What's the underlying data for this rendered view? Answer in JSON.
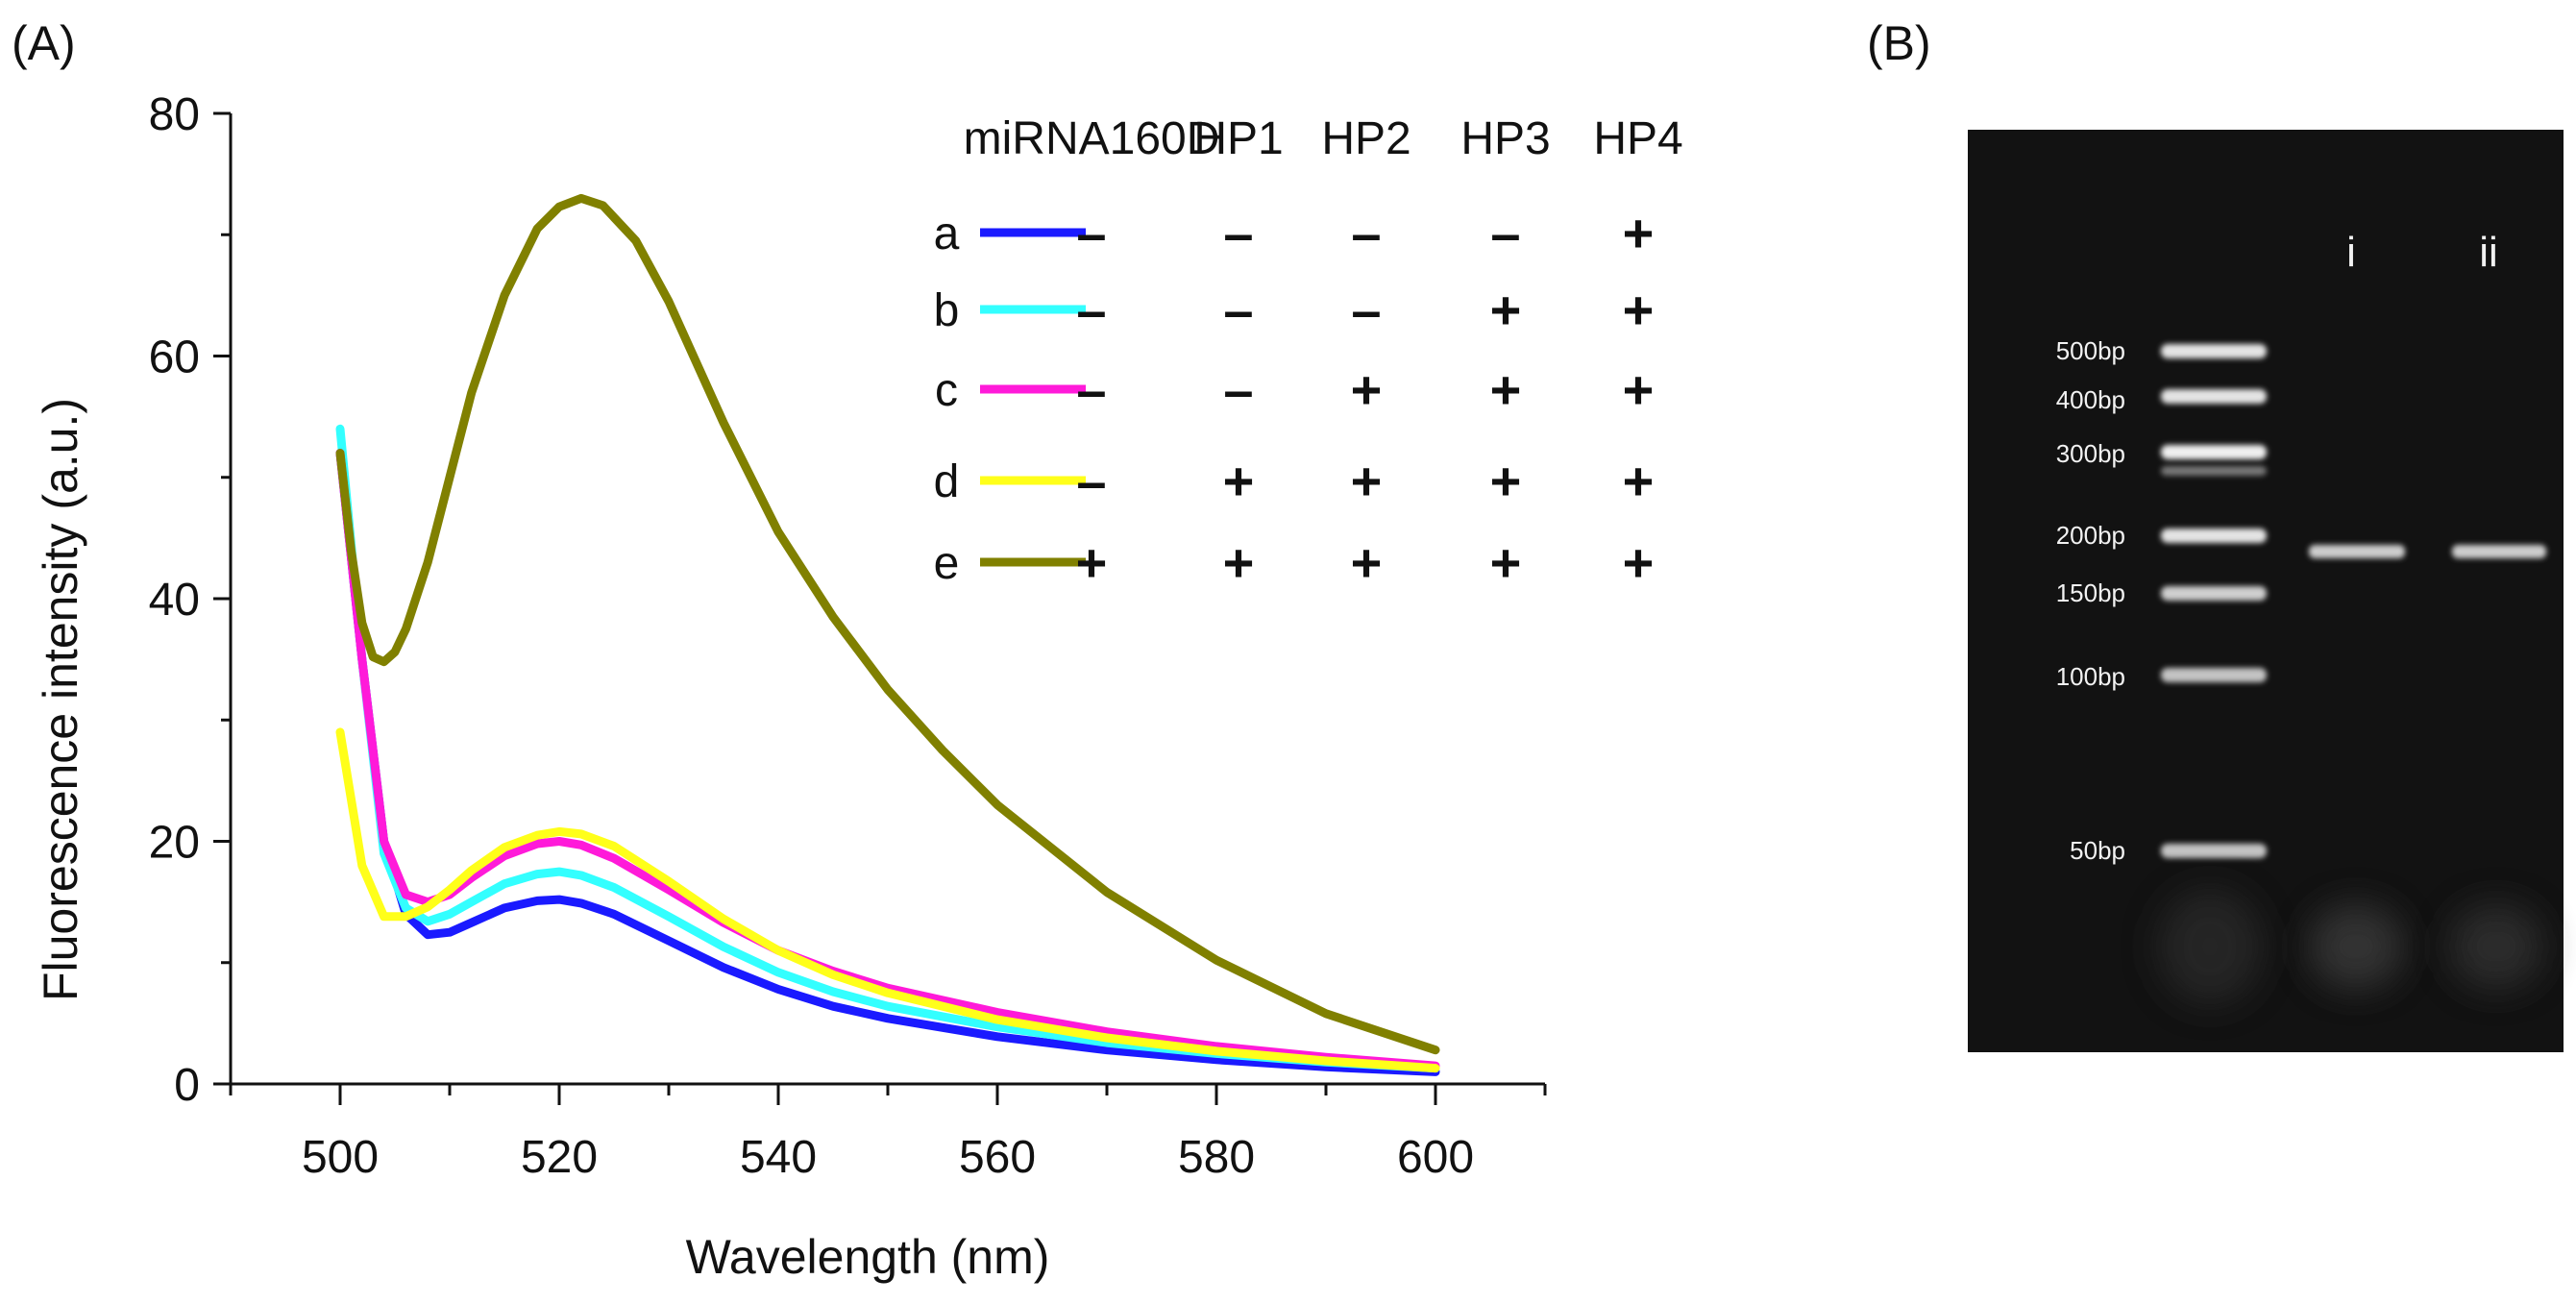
{
  "chart_data": [
    {
      "type": "line",
      "panel_label": "(A)",
      "xlabel": "Wavelength (nm)",
      "ylabel": "Fluorescence intensity (a.u.)",
      "xlim": [
        490,
        610
      ],
      "ylim": [
        0,
        80
      ],
      "xticks": [
        500,
        520,
        540,
        560,
        580,
        600
      ],
      "yticks": [
        0,
        20,
        40,
        60,
        80
      ],
      "grid": false,
      "legend_columns": [
        "miRNA160D",
        "HP1",
        "HP2",
        "HP3",
        "HP4"
      ],
      "series": [
        {
          "name": "a",
          "color": "#1a1aff",
          "signs": [
            "–",
            "–",
            "–",
            "–",
            "+"
          ],
          "x": [
            500,
            502,
            504,
            506,
            508,
            510,
            512,
            515,
            518,
            520,
            522,
            525,
            530,
            535,
            540,
            545,
            550,
            560,
            570,
            580,
            590,
            600
          ],
          "y": [
            52,
            35,
            20,
            14,
            12.3,
            12.5,
            13.3,
            14.5,
            15.1,
            15.2,
            14.9,
            14,
            11.8,
            9.6,
            7.8,
            6.4,
            5.4,
            3.9,
            2.8,
            2,
            1.4,
            1
          ]
        },
        {
          "name": "b",
          "color": "#33ffff",
          "signs": [
            "–",
            "–",
            "–",
            "+",
            "+"
          ],
          "x": [
            500,
            502,
            504,
            506,
            508,
            510,
            512,
            515,
            518,
            520,
            522,
            525,
            530,
            535,
            540,
            545,
            550,
            560,
            570,
            580,
            590,
            600
          ],
          "y": [
            54,
            35,
            19,
            14.5,
            13.4,
            14,
            15,
            16.5,
            17.3,
            17.5,
            17.2,
            16.2,
            13.8,
            11.3,
            9.2,
            7.6,
            6.4,
            4.7,
            3.4,
            2.5,
            1.8,
            1.3
          ]
        },
        {
          "name": "c",
          "color": "#ff1ad9",
          "signs": [
            "–",
            "–",
            "+",
            "+",
            "+"
          ],
          "x": [
            500,
            502,
            504,
            506,
            508,
            510,
            512,
            515,
            518,
            520,
            522,
            525,
            530,
            535,
            540,
            545,
            550,
            560,
            570,
            580,
            590,
            600
          ],
          "y": [
            52,
            35,
            20,
            15.6,
            15,
            15.6,
            17,
            18.8,
            19.8,
            20,
            19.7,
            18.6,
            16,
            13.3,
            11,
            9.3,
            7.9,
            5.9,
            4.3,
            3.1,
            2.2,
            1.5
          ]
        },
        {
          "name": "d",
          "color": "#ffff1a",
          "signs": [
            "–",
            "+",
            "+",
            "+",
            "+"
          ],
          "x": [
            500,
            502,
            504,
            506,
            508,
            510,
            512,
            515,
            518,
            520,
            522,
            525,
            530,
            535,
            540,
            545,
            550,
            560,
            570,
            580,
            590,
            600
          ],
          "y": [
            29,
            18,
            13.8,
            13.8,
            14.6,
            16,
            17.6,
            19.5,
            20.5,
            20.8,
            20.6,
            19.6,
            16.7,
            13.6,
            11,
            9,
            7.5,
            5.3,
            3.8,
            2.7,
            1.9,
            1.3
          ]
        },
        {
          "name": "e",
          "color": "#808000",
          "signs": [
            "+",
            "+",
            "+",
            "+",
            "+"
          ],
          "x": [
            500,
            501,
            502,
            503,
            504,
            505,
            506,
            508,
            510,
            512,
            515,
            518,
            520,
            522,
            524,
            527,
            530,
            535,
            540,
            545,
            550,
            555,
            560,
            570,
            580,
            590,
            600
          ],
          "y": [
            52,
            44,
            38,
            35.2,
            34.8,
            35.6,
            37.5,
            43,
            50,
            57,
            65,
            70.5,
            72.3,
            73,
            72.4,
            69.5,
            64.5,
            54.5,
            45.5,
            38.5,
            32.5,
            27.5,
            23,
            15.8,
            10.2,
            5.8,
            2.8
          ]
        }
      ]
    },
    {
      "type": "other",
      "panel_label": "(B)",
      "ladder": [
        "500bp",
        "400bp",
        "300bp",
        "200bp",
        "150bp",
        "100bp",
        "50bp"
      ],
      "lanes": [
        "i",
        "ii"
      ]
    }
  ],
  "colors": {
    "gel_background": "#111111",
    "band": "#f0f0f0"
  }
}
